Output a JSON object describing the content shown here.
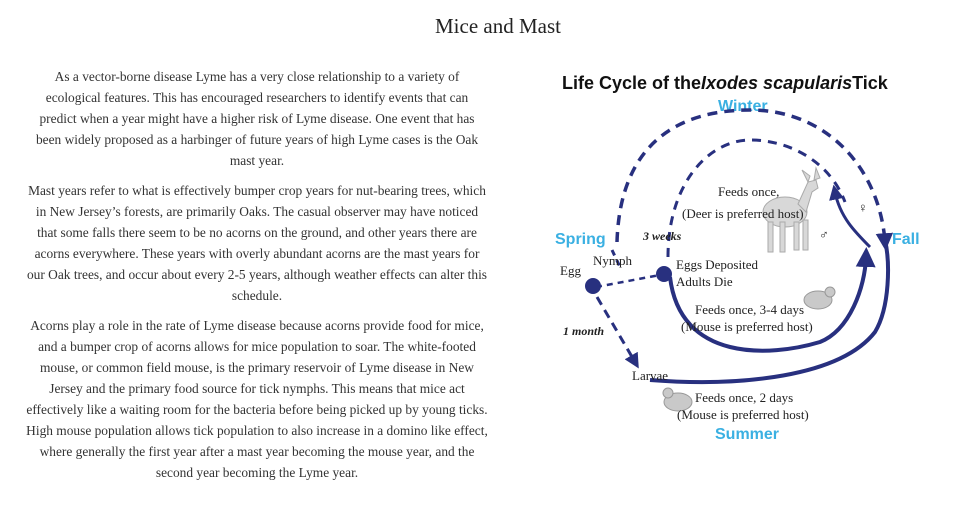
{
  "page": {
    "title": "Mice and Mast"
  },
  "article": {
    "paragraphs": [
      "As a vector-borne disease Lyme has a very close relationship to a variety of ecological features. This has encouraged researchers to identify events that can predict when a year might have a higher risk of Lyme disease. One event that has been widely proposed as a harbinger of future years of high Lyme cases is the Oak mast year.",
      "Mast years refer to what is effectively bumper crop years for nut-bearing trees, which in New Jersey’s forests, are primarily Oaks. The casual observer may have noticed that some falls there seem to be no acorns on the ground, and other years there are acorns everywhere. These years with overly abundant acorns are the mast years for our Oak trees, and occur about every 2-5 years, although weather effects can alter this schedule.",
      "Acorns play a role in the rate of Lyme disease because acorns provide food for mice, and a bumper crop of acorns allows for mice population to soar. The white-footed mouse, or common field mouse, is the primary reservoir of Lyme disease in New Jersey and the primary food source for tick nymphs. This means that mice act effectively like a waiting room for the bacteria before being picked up by young ticks. High mouse population allows tick population to also increase in a domino like effect, where generally the first year after a mast year becoming the mouse year, and the second year becoming the Lyme year."
    ]
  },
  "diagram": {
    "title_prefix": "Life Cycle of the",
    "title_species": "Ixodes scapularis",
    "title_suffix": "Tick",
    "seasons": {
      "winter": "Winter",
      "spring": "Spring",
      "fall": "Fall",
      "summer": "Summer"
    },
    "stages": {
      "egg": "Egg",
      "nymph": "Nymph",
      "larvae": "Larvae",
      "eggs_deposited_line1": "Eggs Deposited",
      "eggs_deposited_line2": "Adults Die"
    },
    "durations": {
      "three_weeks": "3 weeks",
      "one_month": "1 month"
    },
    "feeding": {
      "adult_line1": "Feeds once,",
      "adult_line2": "(Deer is preferred host)",
      "nymph_line1": "Feeds once, 3-4 days",
      "nymph_line2": "(Mouse is preferred host)",
      "larvae_line1": "Feeds once, 2 days",
      "larvae_line2": "(Mouse is preferred host)"
    },
    "symbols": {
      "female": "♀",
      "male": "♂"
    },
    "colors": {
      "arrow": "#28307f",
      "season": "#3ab0e2"
    }
  }
}
